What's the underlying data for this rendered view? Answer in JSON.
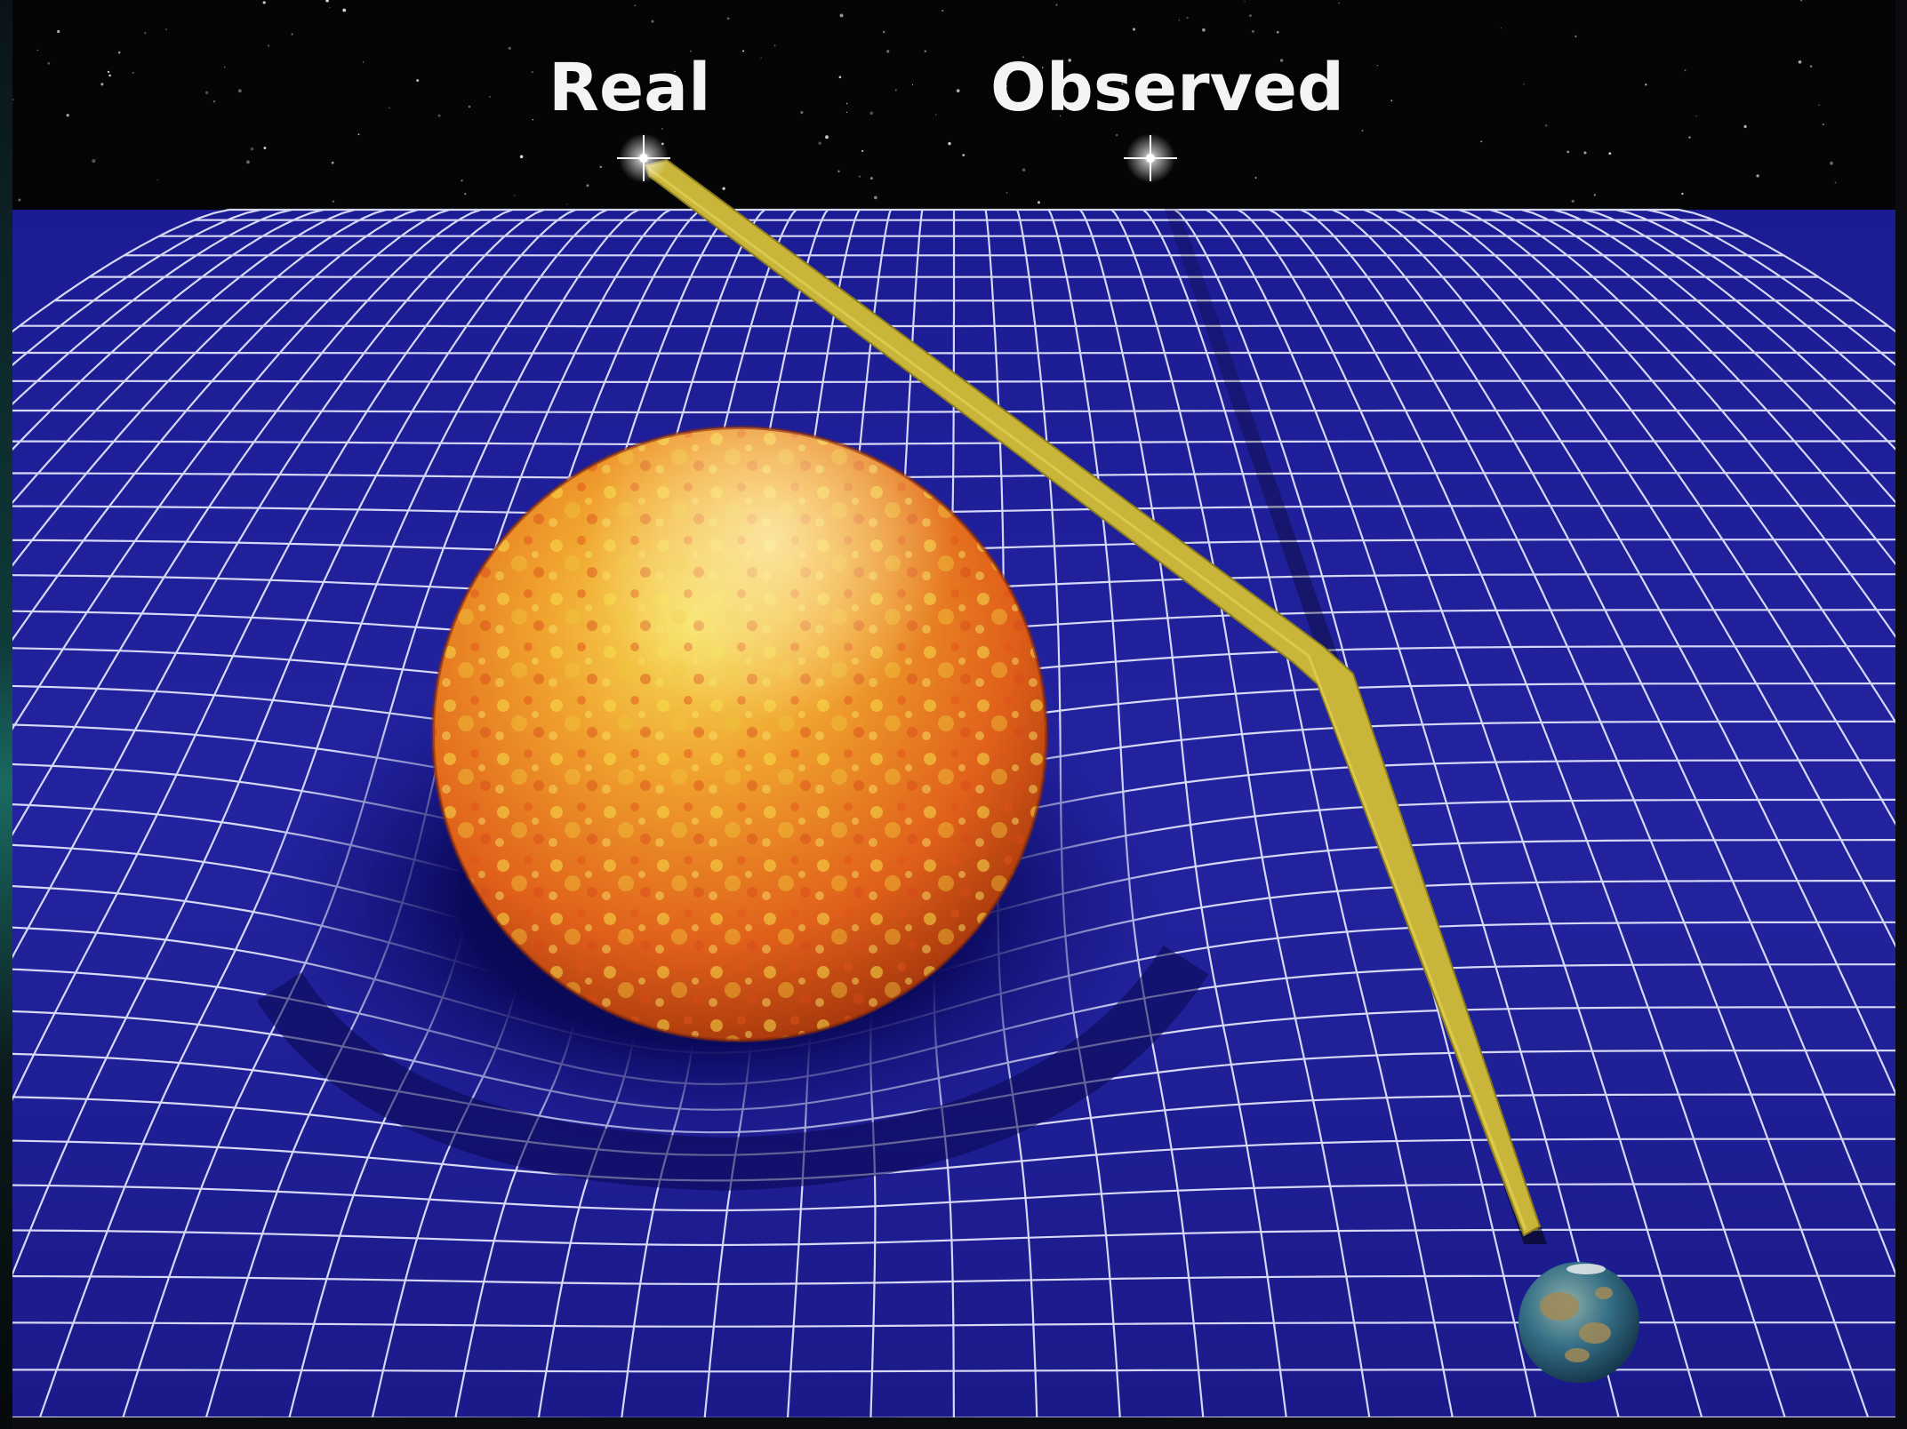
{
  "labels": {
    "real": "Real",
    "observed": "Observed"
  },
  "colors": {
    "sky": "#050507",
    "grid_fabric": "#1f1f9e",
    "grid_lines": "#e6e8ff",
    "light_ray": "#c8b53a",
    "sun_base": "#e8641a",
    "sun_highlight": "#f3d43a",
    "earth_ocean": "#2a6a86",
    "earth_land": "#9a8a5a"
  },
  "icons": {
    "real_star": "star-glint-icon",
    "observed_star": "star-glint-icon",
    "sun": "sun-sphere",
    "earth": "earth-globe"
  }
}
